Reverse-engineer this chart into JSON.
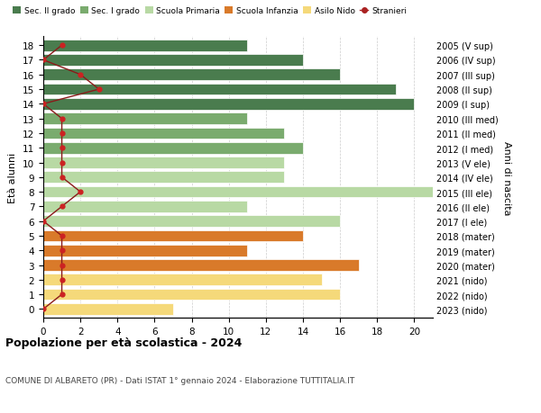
{
  "ages": [
    18,
    17,
    16,
    15,
    14,
    13,
    12,
    11,
    10,
    9,
    8,
    7,
    6,
    5,
    4,
    3,
    2,
    1,
    0
  ],
  "labels_right": [
    "2005 (V sup)",
    "2006 (IV sup)",
    "2007 (III sup)",
    "2008 (II sup)",
    "2009 (I sup)",
    "2010 (III med)",
    "2011 (II med)",
    "2012 (I med)",
    "2013 (V ele)",
    "2014 (IV ele)",
    "2015 (III ele)",
    "2016 (II ele)",
    "2017 (I ele)",
    "2018 (mater)",
    "2019 (mater)",
    "2020 (mater)",
    "2021 (nido)",
    "2022 (nido)",
    "2023 (nido)"
  ],
  "bar_values": [
    11,
    14,
    16,
    19,
    20,
    11,
    13,
    14,
    13,
    13,
    21,
    11,
    16,
    14,
    11,
    17,
    15,
    16,
    7
  ],
  "bar_colors": [
    "#4a7c4e",
    "#4a7c4e",
    "#4a7c4e",
    "#4a7c4e",
    "#4a7c4e",
    "#7aab6e",
    "#7aab6e",
    "#7aab6e",
    "#b8d9a4",
    "#b8d9a4",
    "#b8d9a4",
    "#b8d9a4",
    "#b8d9a4",
    "#d97a2a",
    "#d97a2a",
    "#d97a2a",
    "#f5d97a",
    "#f5d97a",
    "#f5d97a"
  ],
  "stranieri_values": [
    1,
    0,
    2,
    3,
    0,
    1,
    1,
    1,
    1,
    1,
    2,
    1,
    0,
    1,
    1,
    1,
    1,
    1,
    0
  ],
  "legend_labels": [
    "Sec. II grado",
    "Sec. I grado",
    "Scuola Primaria",
    "Scuola Infanzia",
    "Asilo Nido",
    "Stranieri"
  ],
  "legend_colors": [
    "#4a7c4e",
    "#7aab6e",
    "#b8d9a4",
    "#d97a2a",
    "#f5d97a",
    "#aa2222"
  ],
  "title": "Popolazione per età scolastica - 2024",
  "subtitle": "COMUNE DI ALBARETO (PR) - Dati ISTAT 1° gennaio 2024 - Elaborazione TUTTITALIA.IT",
  "ylabel": "Età alunni",
  "ylabel_right": "Anni di nascita",
  "xlim": [
    0,
    21
  ],
  "xticks": [
    0,
    2,
    4,
    6,
    8,
    10,
    12,
    14,
    16,
    18,
    20
  ],
  "background_color": "#ffffff",
  "grid_color": "#cccccc"
}
